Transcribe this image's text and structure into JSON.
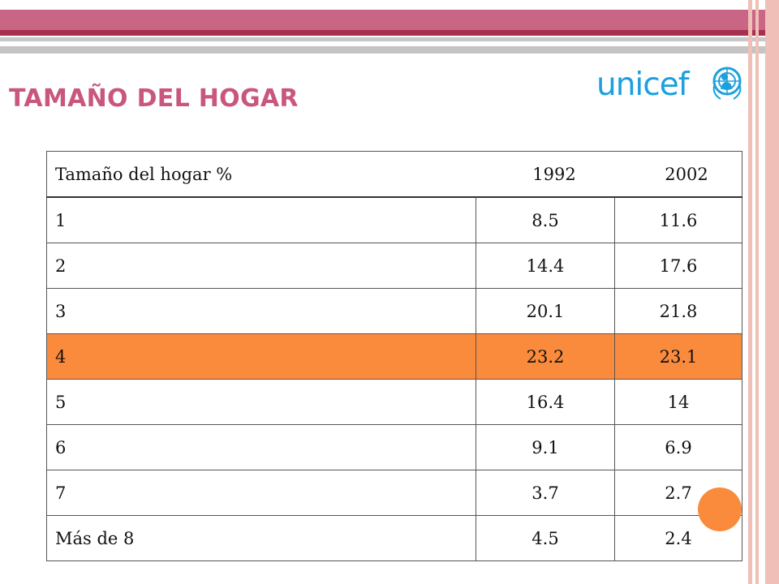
{
  "title": "TAMAÑO DEL HOGAR",
  "logo": {
    "text": "unicef",
    "emblem": "unicef-emblem-icon"
  },
  "table": {
    "headers": {
      "label": "Tamaño del hogar  %",
      "y1": "1992",
      "y2": "2002"
    },
    "rows": [
      {
        "size": "1",
        "y1992": "8.5",
        "y2002": "11.6"
      },
      {
        "size": "2",
        "y1992": "14.4",
        "y2002": "17.6"
      },
      {
        "size": "3",
        "y1992": "20.1",
        "y2002": "21.8"
      },
      {
        "size": "4",
        "y1992": "23.2",
        "y2002": "23.1",
        "highlighted": true
      },
      {
        "size": "5",
        "y1992": "16.4",
        "y2002": "14"
      },
      {
        "size": "6",
        "y1992": "9.1",
        "y2002": "6.9"
      },
      {
        "size": "7",
        "y1992": "3.7",
        "y2002": "2.7"
      },
      {
        "size": "Más de 8",
        "y1992": "4.5",
        "y2002": "2.4"
      }
    ]
  },
  "colors": {
    "title": "#c9577c",
    "highlight": "#fb8b3c",
    "band": "#c96686",
    "logo": "#1ca0dd"
  }
}
